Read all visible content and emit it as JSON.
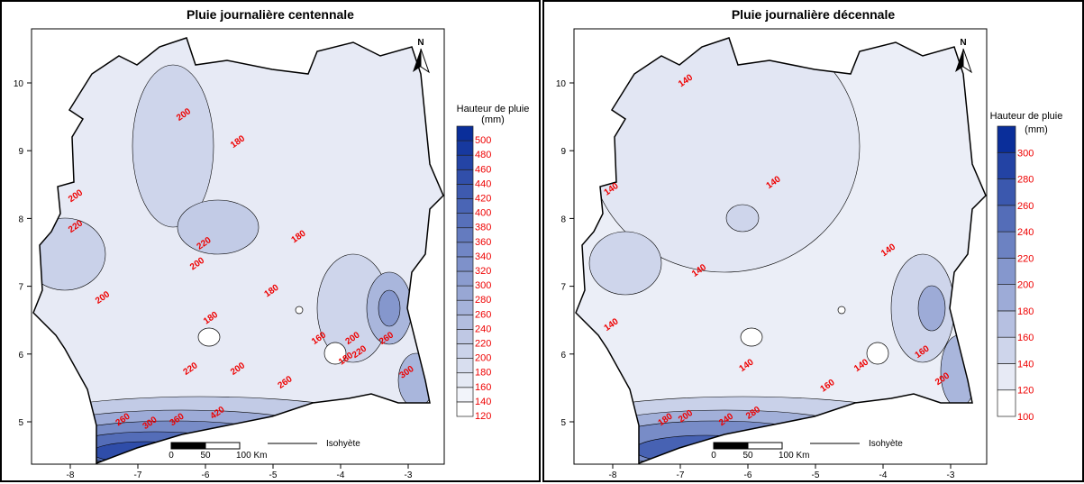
{
  "panels": [
    {
      "title": "Pluie journalière centennale",
      "legend_title": "Hauteur de pluie",
      "legend_unit": "(mm)",
      "legend_classes": [
        120,
        140,
        160,
        180,
        200,
        220,
        240,
        260,
        280,
        300,
        320,
        340,
        360,
        380,
        400,
        420,
        440,
        460,
        480,
        500
      ],
      "legend_colors_min_max": [
        "#ffffff",
        "#0a2e9a"
      ],
      "contour_labels": [
        {
          "text": "200",
          "lon": -6.3,
          "lat": 9.5
        },
        {
          "text": "180",
          "lon": -5.5,
          "lat": 9.1
        },
        {
          "text": "200",
          "lon": -7.9,
          "lat": 8.3
        },
        {
          "text": "220",
          "lon": -7.9,
          "lat": 7.85
        },
        {
          "text": "220",
          "lon": -6.0,
          "lat": 7.6
        },
        {
          "text": "200",
          "lon": -6.1,
          "lat": 7.3
        },
        {
          "text": "200",
          "lon": -7.5,
          "lat": 6.8
        },
        {
          "text": "180",
          "lon": -4.6,
          "lat": 7.7
        },
        {
          "text": "180",
          "lon": -5.0,
          "lat": 6.9
        },
        {
          "text": "180",
          "lon": -5.9,
          "lat": 6.5
        },
        {
          "text": "160",
          "lon": -4.3,
          "lat": 6.2
        },
        {
          "text": "200",
          "lon": -3.8,
          "lat": 6.2
        },
        {
          "text": "260",
          "lon": -3.3,
          "lat": 6.2
        },
        {
          "text": "180",
          "lon": -3.9,
          "lat": 5.9
        },
        {
          "text": "220",
          "lon": -3.7,
          "lat": 6.0
        },
        {
          "text": "300",
          "lon": -3.0,
          "lat": 5.7
        },
        {
          "text": "220",
          "lon": -6.2,
          "lat": 5.75
        },
        {
          "text": "200",
          "lon": -5.5,
          "lat": 5.75
        },
        {
          "text": "260",
          "lon": -4.8,
          "lat": 5.55
        },
        {
          "text": "260",
          "lon": -7.2,
          "lat": 5.0
        },
        {
          "text": "300",
          "lon": -6.8,
          "lat": 4.95
        },
        {
          "text": "360",
          "lon": -6.4,
          "lat": 5.0
        },
        {
          "text": "420",
          "lon": -5.8,
          "lat": 5.1
        }
      ]
    },
    {
      "title": "Pluie journalière décennale",
      "legend_title": "Hauteur de pluie",
      "legend_unit": "(mm)",
      "legend_classes": [
        100,
        120,
        140,
        160,
        180,
        200,
        220,
        240,
        260,
        280,
        300
      ],
      "legend_colors_min_max": [
        "#ffffff",
        "#0a2e9a"
      ],
      "contour_labels": [
        {
          "text": "140",
          "lon": -6.9,
          "lat": 10.0
        },
        {
          "text": "140",
          "lon": -5.6,
          "lat": 8.5
        },
        {
          "text": "140",
          "lon": -8.0,
          "lat": 8.4
        },
        {
          "text": "140",
          "lon": -6.7,
          "lat": 7.2
        },
        {
          "text": "140",
          "lon": -3.9,
          "lat": 7.5
        },
        {
          "text": "140",
          "lon": -8.0,
          "lat": 6.4
        },
        {
          "text": "140",
          "lon": -6.0,
          "lat": 5.8
        },
        {
          "text": "140",
          "lon": -4.3,
          "lat": 5.8
        },
        {
          "text": "160",
          "lon": -3.4,
          "lat": 6.0
        },
        {
          "text": "200",
          "lon": -3.1,
          "lat": 5.6
        },
        {
          "text": "160",
          "lon": -4.8,
          "lat": 5.5
        },
        {
          "text": "180",
          "lon": -7.2,
          "lat": 5.0
        },
        {
          "text": "200",
          "lon": -6.9,
          "lat": 5.05
        },
        {
          "text": "240",
          "lon": -6.3,
          "lat": 5.0
        },
        {
          "text": "280",
          "lon": -5.9,
          "lat": 5.1
        }
      ]
    }
  ],
  "axes": {
    "lon_ticks": [
      "-8",
      "-7",
      "-6",
      "-5",
      "-4",
      "-3"
    ],
    "lat_ticks": [
      "10",
      "9",
      "8",
      "7",
      "6",
      "5"
    ]
  },
  "north_arrow": "N",
  "scale_bar": {
    "labels": [
      "0",
      "50",
      "100 Km"
    ]
  },
  "isohyete_label": "Isohyète"
}
